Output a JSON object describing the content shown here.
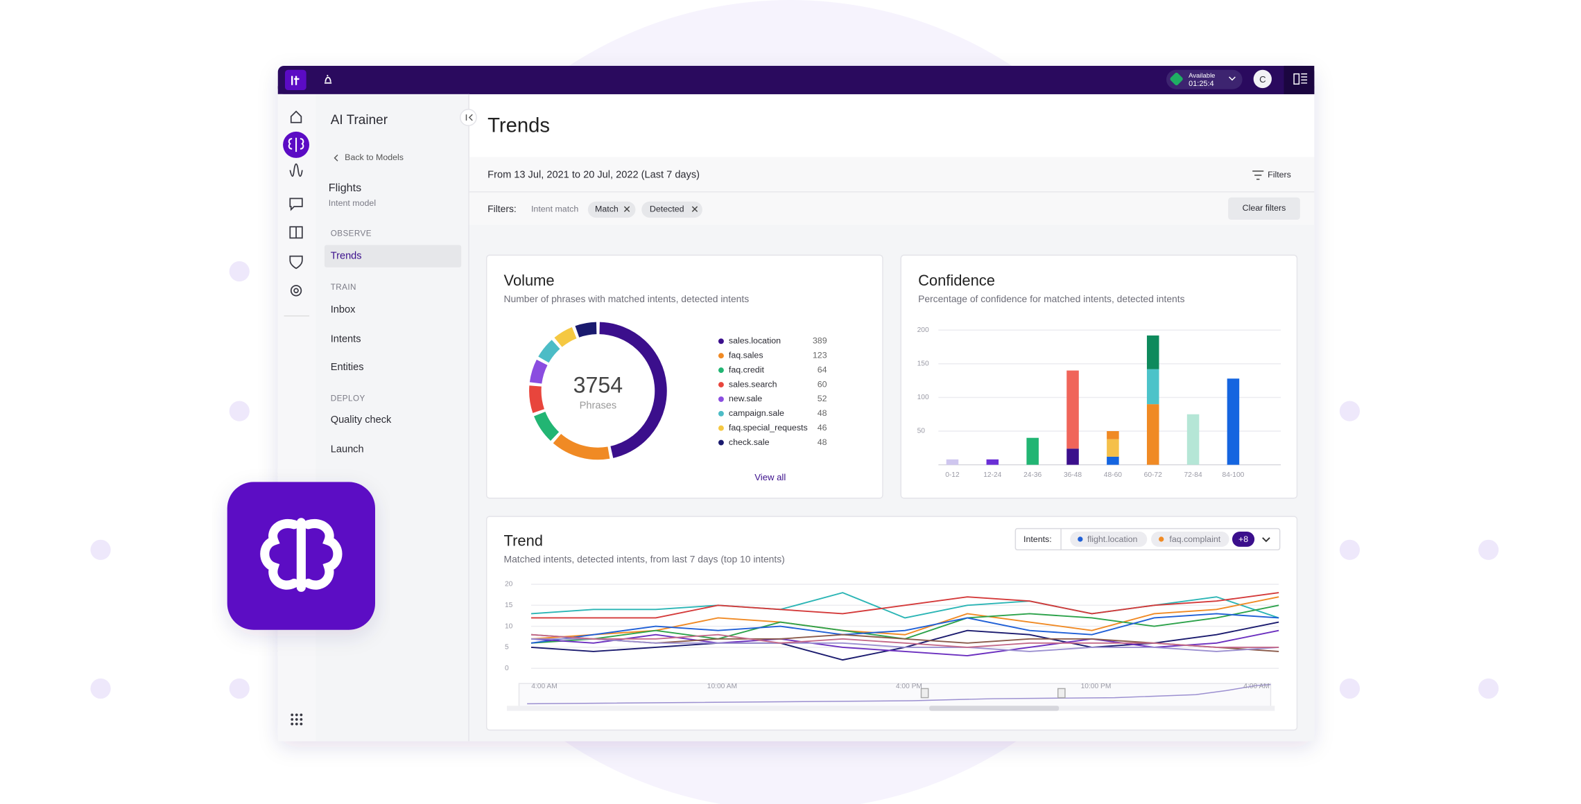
{
  "topbar": {
    "status": "Available",
    "timer": "01:25:4",
    "avatar": "C"
  },
  "sidebar": {
    "title": "AI Trainer",
    "back": "Back to Models",
    "model": "Flights",
    "model_type": "Intent model",
    "sections": [
      {
        "heading": "OBSERVE",
        "items": [
          "Trends"
        ]
      },
      {
        "heading": "TRAIN",
        "items": [
          "Inbox",
          "Intents",
          "Entities"
        ]
      },
      {
        "heading": "DEPLOY",
        "items": [
          "Quality check",
          "Launch"
        ]
      }
    ]
  },
  "page": {
    "title": "Trends",
    "date_range": "From 13 Jul, 2021 to 20 Jul, 2022 (Last 7 days)",
    "filters_button": "Filters",
    "filters_label": "Filters:",
    "filter_type": "Intent match",
    "chips": [
      "Match",
      "Detected"
    ],
    "clear": "Clear filters"
  },
  "chart_data": [
    {
      "type": "donut",
      "title": "Volume",
      "subtitle": "Number of phrases with matched intents, detected intents",
      "total": 3754,
      "total_label": "Phrases",
      "categories": [
        "sales.location",
        "faq.sales",
        "faq.credit",
        "sales.search",
        "new.sale",
        "campaign.sale",
        "faq.special_requests",
        "check.sale"
      ],
      "values": [
        389,
        123,
        64,
        60,
        52,
        48,
        46,
        48
      ],
      "colors": [
        "#3b0f8c",
        "#f08a24",
        "#22b573",
        "#e8453c",
        "#8a4de0",
        "#4cbcc6",
        "#f5c842",
        "#1a1a6e"
      ],
      "link": "View all"
    },
    {
      "type": "bar",
      "stacked": true,
      "title": "Confidence",
      "subtitle": "Percentage of confidence for matched intents, detected intents",
      "categories": [
        "0-12",
        "12-24",
        "24-36",
        "36-48",
        "48-60",
        "60-72",
        "72-84",
        "84-100"
      ],
      "ylim": [
        0,
        200
      ],
      "yticks": [
        50,
        100,
        150,
        200
      ],
      "grid": true,
      "series": [
        {
          "color": "#cfc6ef",
          "values": [
            8,
            null,
            null,
            null,
            null,
            null,
            null,
            null
          ]
        },
        {
          "color": "#6a2fd6",
          "values": [
            null,
            8,
            null,
            null,
            null,
            null,
            null,
            null
          ]
        },
        {
          "color": "#22b573",
          "values": [
            null,
            null,
            40,
            null,
            null,
            null,
            null,
            null
          ]
        },
        {
          "color": "#3b0f8c",
          "values": [
            null,
            null,
            null,
            24,
            null,
            null,
            null,
            null
          ]
        },
        {
          "color": "#f0655a",
          "values": [
            null,
            null,
            null,
            116,
            null,
            null,
            null,
            null
          ]
        },
        {
          "color": "#1565e0",
          "values": [
            null,
            null,
            null,
            null,
            12,
            null,
            null,
            128
          ]
        },
        {
          "color": "#f5c04a",
          "values": [
            null,
            null,
            null,
            null,
            26,
            null,
            null,
            null
          ]
        },
        {
          "color": "#f08a24",
          "values": [
            null,
            null,
            null,
            null,
            12,
            90,
            null,
            null
          ]
        },
        {
          "color": "#4cc3c9",
          "values": [
            null,
            null,
            null,
            null,
            null,
            52,
            null,
            null
          ]
        },
        {
          "color": "#0e8a5c",
          "values": [
            null,
            null,
            null,
            null,
            null,
            50,
            null,
            null
          ]
        },
        {
          "color": "#b5e6d6",
          "values": [
            null,
            null,
            null,
            null,
            null,
            null,
            75,
            null
          ]
        }
      ]
    },
    {
      "type": "line",
      "title": "Trend",
      "subtitle": "Matched intents, detected intents, from last 7 days (top 10 intents)",
      "intents_label": "Intents:",
      "intent_chips": [
        "flight.location",
        "faq.complaint"
      ],
      "more": "+8",
      "categories": [
        "4:00 AM",
        null,
        null,
        "10:00 AM",
        null,
        null,
        "4:00 PM",
        null,
        null,
        "10:00 PM",
        null,
        null,
        "4:00 AM"
      ],
      "ylim": [
        0,
        20
      ],
      "yticks": [
        0,
        5,
        10,
        15,
        20
      ],
      "grid": true,
      "series": [
        {
          "color": "#2bb5b5",
          "values": [
            13,
            14,
            14,
            15,
            14,
            18,
            12,
            15,
            16,
            13,
            15,
            17,
            12
          ]
        },
        {
          "color": "#d43a3a",
          "values": [
            12,
            12,
            12,
            15,
            14,
            13,
            15,
            17,
            16,
            13,
            15,
            16,
            18
          ]
        },
        {
          "color": "#f08a24",
          "values": [
            7,
            8,
            9,
            12,
            11,
            9,
            8,
            13,
            11,
            9,
            13,
            14,
            17
          ]
        },
        {
          "color": "#2ca24a",
          "values": [
            6,
            7,
            9,
            7,
            11,
            9,
            7,
            12,
            13,
            12,
            10,
            12,
            15
          ]
        },
        {
          "color": "#1f5fd6",
          "values": [
            6,
            8,
            10,
            9,
            10,
            8,
            9,
            12,
            9,
            8,
            12,
            13,
            12
          ]
        },
        {
          "color": "#1a1a6e",
          "values": [
            5,
            4,
            5,
            6,
            6,
            2,
            5,
            9,
            8,
            5,
            6,
            8,
            11
          ]
        },
        {
          "color": "#6b2fbf",
          "values": [
            7,
            6,
            8,
            6,
            7,
            5,
            4,
            3,
            5,
            7,
            5,
            6,
            9
          ]
        },
        {
          "color": "#8a5a4a",
          "values": [
            8,
            7,
            6,
            7,
            7,
            8,
            7,
            6,
            7,
            7,
            6,
            5,
            4
          ]
        },
        {
          "color": "#9b8fd0",
          "values": [
            7,
            7,
            6,
            6,
            6,
            6,
            5,
            5,
            4,
            5,
            5,
            4,
            5
          ]
        },
        {
          "color": "#c46a8a",
          "values": [
            8,
            7,
            7,
            8,
            6,
            7,
            6,
            5,
            6,
            6,
            6,
            5,
            5
          ]
        }
      ]
    }
  ]
}
